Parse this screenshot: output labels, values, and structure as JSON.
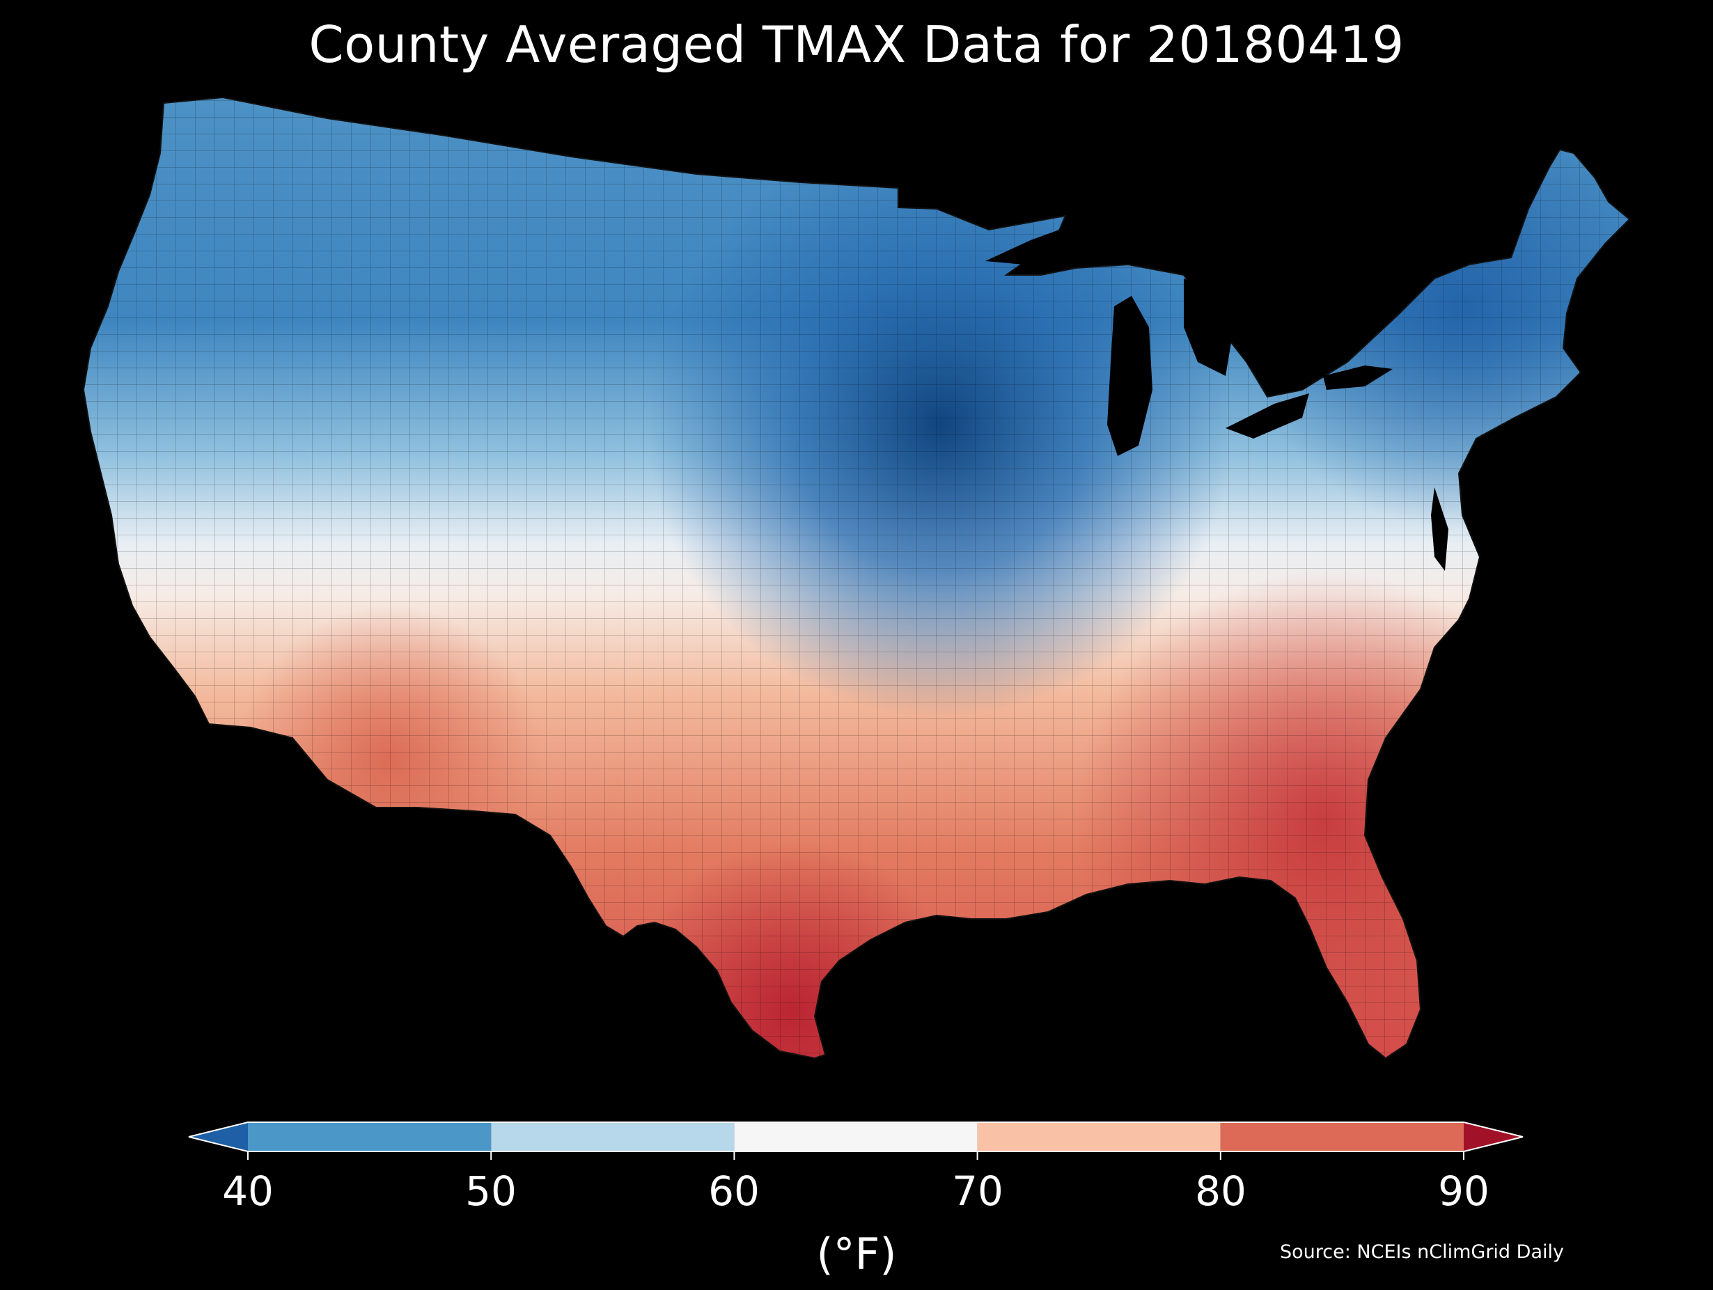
{
  "title": "County Averaged TMAX Data for 20180419",
  "colorbar": {
    "ticks": [
      "40",
      "50",
      "60",
      "70",
      "80",
      "90"
    ],
    "units": "(°F)",
    "bins": [
      {
        "from": 40,
        "to": 50,
        "color": "#4b98c8"
      },
      {
        "from": 50,
        "to": 60,
        "color": "#b7d7ea"
      },
      {
        "from": 60,
        "to": 70,
        "color": "#f6f6f6"
      },
      {
        "from": 70,
        "to": 80,
        "color": "#f9c2a7"
      },
      {
        "from": 80,
        "to": 90,
        "color": "#dc6a56"
      }
    ],
    "under_color": "#1f5fa6",
    "over_color": "#a11228"
  },
  "source": "Source: NCEIs nClimGrid Daily",
  "map_colors": {
    "coldest": "#0b3f7a",
    "cold": "#2f7bbb",
    "cool": "#8fc0de",
    "neutral": "#f4f4f4",
    "warm": "#f3a582",
    "hot": "#d4504a",
    "hottest": "#b3192b"
  }
}
